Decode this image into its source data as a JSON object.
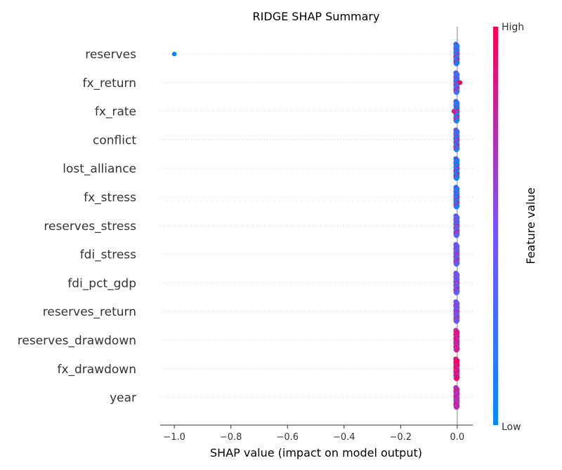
{
  "chart_data": {
    "type": "scatter",
    "title": "RIDGE SHAP Summary",
    "xlabel": "SHAP value (impact on model output)",
    "xlim": [
      -1.05,
      0.055
    ],
    "xticks": [
      -1.0,
      -0.8,
      -0.6,
      -0.4,
      -0.2,
      0.0
    ],
    "xtick_labels": [
      "−1.0",
      "−0.8",
      "−0.6",
      "−0.4",
      "−0.2",
      "0.0"
    ],
    "features": [
      "reserves",
      "fx_return",
      "fx_rate",
      "conflict",
      "lost_alliance",
      "fx_stress",
      "reserves_stress",
      "fdi_stress",
      "fdi_pct_gdp",
      "reserves_return",
      "reserves_drawdown",
      "fx_drawdown",
      "year"
    ],
    "outliers": [
      {
        "feature": "reserves",
        "shap": -1.0,
        "feature_value": 0.0
      },
      {
        "feature": "fx_return",
        "shap": 0.01,
        "feature_value": 1.0
      },
      {
        "feature": "fx_rate",
        "shap": -0.012,
        "feature_value": 0.85
      }
    ],
    "dominant_feature_value": [
      0.1,
      0.2,
      0.1,
      0.15,
      0.05,
      0.1,
      0.3,
      0.35,
      0.35,
      0.4,
      0.85,
      0.95,
      0.75
    ],
    "colorbar": {
      "label": "Feature value",
      "high_label": "High",
      "low_label": "Low",
      "low_color": "#008bfb",
      "high_color": "#ff0052"
    },
    "grid": "dotted horizontal",
    "legend": "right colorbar"
  }
}
